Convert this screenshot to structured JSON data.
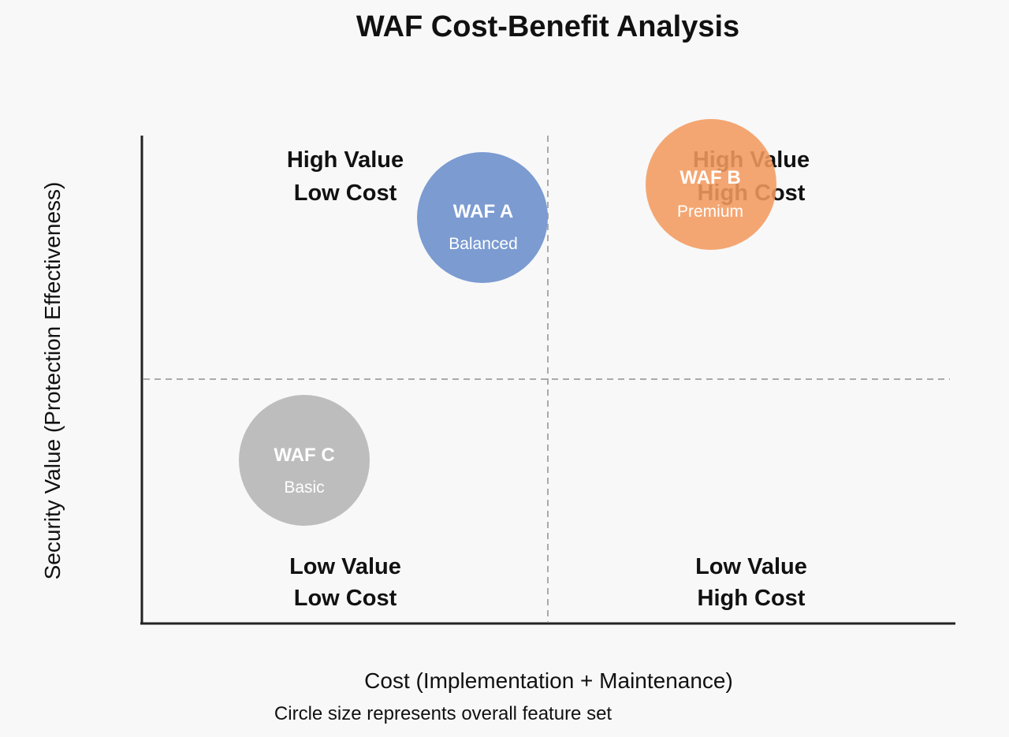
{
  "title": "WAF Cost-Benefit Analysis",
  "x_axis_label": "Cost (Implementation + Maintenance)",
  "y_axis_label": "Security Value (Protection Effectiveness)",
  "note": "Circle size represents overall feature set",
  "quadrants": {
    "top_left": [
      "High Value",
      "Low Cost"
    ],
    "top_right": [
      "High Value",
      "High Cost"
    ],
    "bottom_left": [
      "Low Value",
      "Low Cost"
    ],
    "bottom_right": [
      "Low Value",
      "High Cost"
    ]
  },
  "items": [
    {
      "name": "WAF A",
      "subtitle": "Balanced",
      "color": "#7b9bd1"
    },
    {
      "name": "WAF B",
      "subtitle": "Premium",
      "color": "#f39a5e"
    },
    {
      "name": "WAF C",
      "subtitle": "Basic",
      "color": "#bdbdbd"
    }
  ]
}
